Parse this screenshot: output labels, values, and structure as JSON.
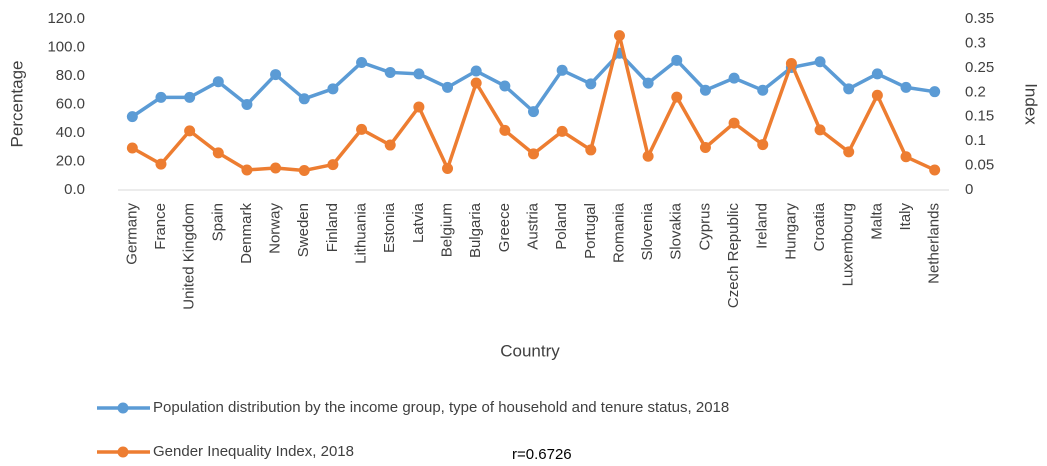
{
  "chart_data": {
    "type": "line",
    "xlabel": "Country",
    "ylabel": "Percentage",
    "y2label": "Index",
    "annotation": "r=0.6726",
    "categories": [
      "Germany",
      "France",
      "United Kingdom",
      "Spain",
      "Denmark",
      "Norway",
      "Sweden",
      "Finland",
      "Lithuania",
      "Estonia",
      "Latvia",
      "Belgium",
      "Bulgaria",
      "Greece",
      "Austria",
      "Poland",
      "Portugal",
      "Romania",
      "Slovenia",
      "Slovakia",
      "Cyprus",
      "Czech Republic",
      "Ireland",
      "Hungary",
      "Croatia",
      "Luxembourg",
      "Malta",
      "Italy",
      "Netherlands"
    ],
    "series": [
      {
        "name": "Population distribution by the income group, type of household and tenure status, 2018",
        "color": "#5b9bd5",
        "values": [
          51.5,
          65,
          65,
          76,
          60,
          81,
          64,
          71,
          89.5,
          82.5,
          81.5,
          72,
          83.5,
          73,
          55,
          84,
          74.5,
          96,
          75,
          91,
          70,
          78.5,
          70,
          86,
          90,
          71,
          81.5,
          72,
          69
        ]
      },
      {
        "name": "Gender Inequality Index, 2018",
        "color": "#ed7d31",
        "axis": "y2",
        "values": [
          0.086,
          0.053,
          0.121,
          0.076,
          0.041,
          0.045,
          0.04,
          0.052,
          0.124,
          0.092,
          0.17,
          0.044,
          0.219,
          0.122,
          0.074,
          0.12,
          0.082,
          0.316,
          0.069,
          0.19,
          0.087,
          0.137,
          0.093,
          0.259,
          0.123,
          0.078,
          0.194,
          0.068,
          0.041
        ]
      }
    ],
    "ylim": [
      0,
      120
    ],
    "yticks": [
      {
        "value": 0,
        "label": "0.0"
      },
      {
        "value": 20,
        "label": "20.0"
      },
      {
        "value": 40,
        "label": "40.0"
      },
      {
        "value": 60,
        "label": "60.0"
      },
      {
        "value": 80,
        "label": "80.0"
      },
      {
        "value": 100,
        "label": "100.0"
      },
      {
        "value": 120,
        "label": "120.0"
      }
    ],
    "y2lim": [
      0,
      0.35
    ],
    "y2ticks": [
      0,
      0.05,
      0.1,
      0.15,
      0.2,
      0.25,
      0.3,
      0.35
    ],
    "grid": false
  }
}
